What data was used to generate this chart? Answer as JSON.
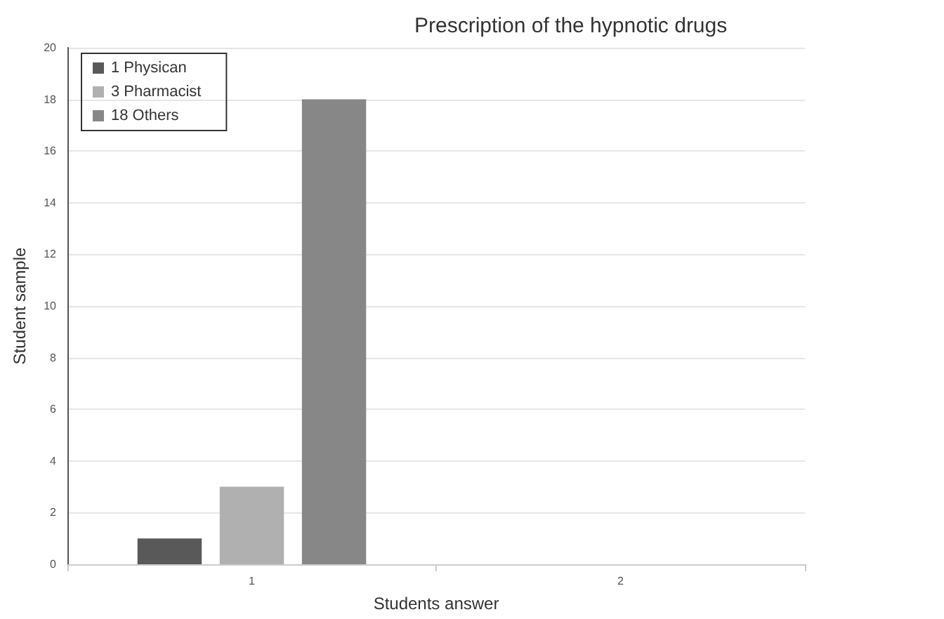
{
  "chart_data": {
    "type": "bar",
    "title": "Prescription of the hypnotic drugs",
    "xlabel": "Students answer",
    "ylabel": "Student sample",
    "categories": [
      "1",
      "2"
    ],
    "series": [
      {
        "name": "1 Physican",
        "color": "#595959",
        "values": [
          1,
          null
        ]
      },
      {
        "name": "3 Pharmacist",
        "color": "#b0b0b0",
        "values": [
          3,
          null
        ]
      },
      {
        "name": "18 Others",
        "color": "#878787",
        "values": [
          18,
          null
        ]
      }
    ],
    "ylim": [
      0,
      20
    ],
    "yticks": [
      0,
      2,
      4,
      6,
      8,
      10,
      12,
      14,
      16,
      18,
      20
    ],
    "grid": "y",
    "legend": "top left"
  }
}
